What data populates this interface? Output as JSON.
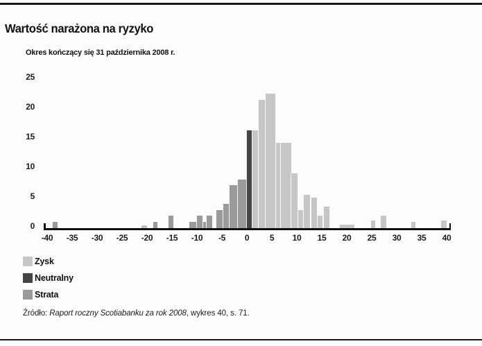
{
  "page": {
    "title": "Wartość narażona na ryzyko",
    "subtitle": "Okres kończący się 31 października 2008 r.",
    "source": {
      "prefix": "Źródło: ",
      "work": "Raport roczny Scotiabanku za rok 2008",
      "suffix": ", wykres 40, s. 71."
    }
  },
  "legend": {
    "items": [
      {
        "label": "Zysk",
        "color": "#c6c6c6"
      },
      {
        "label": "Neutralny",
        "color": "#454545"
      },
      {
        "label": "Strata",
        "color": "#9a9a9a"
      }
    ]
  },
  "chart_data": {
    "type": "bar",
    "title": "Wartość narażona na ryzyko",
    "subtitle": "Okres kończący się 31 października 2008 r.",
    "xlabel": "",
    "ylabel": "",
    "xlim": [
      -42,
      42
    ],
    "ylim": [
      0,
      25
    ],
    "grid": false,
    "legend_position": "bottom-left",
    "x_ticks": [
      -40,
      -35,
      -30,
      -25,
      -20,
      -15,
      -10,
      -5,
      0,
      5,
      10,
      15,
      20,
      25,
      30,
      35,
      40
    ],
    "y_ticks": [
      0,
      5,
      10,
      15,
      20,
      25
    ],
    "colors": {
      "zysk": "#c6c6c6",
      "neutralny": "#454545",
      "strata": "#9a9a9a",
      "axis": "#0f0f0f"
    },
    "series_labels": {
      "zysk": "Zysk",
      "neutralny": "Neutralny",
      "strata": "Strata"
    },
    "bars": [
      {
        "x": -38.5,
        "w": 1.1,
        "h": 1,
        "series": "strata"
      },
      {
        "x": -20.6,
        "w": 1.2,
        "h": 0.5,
        "series": "strata",
        "color": "#c2c2c2"
      },
      {
        "x": -18.4,
        "w": 1.1,
        "h": 1,
        "series": "strata"
      },
      {
        "x": -15.3,
        "w": 1.2,
        "h": 2,
        "series": "strata"
      },
      {
        "x": -10.9,
        "w": 1.5,
        "h": 1,
        "series": "strata"
      },
      {
        "x": -9.5,
        "w": 1.3,
        "h": 2,
        "series": "strata"
      },
      {
        "x": -8.5,
        "w": 0.9,
        "h": 1,
        "series": "strata"
      },
      {
        "x": -7.6,
        "w": 1.3,
        "h": 2,
        "series": "strata"
      },
      {
        "x": -5.5,
        "w": 1.4,
        "h": 3,
        "series": "strata"
      },
      {
        "x": -4.2,
        "w": 1.3,
        "h": 4,
        "series": "strata"
      },
      {
        "x": -2.8,
        "w": 1.6,
        "h": 7,
        "series": "strata"
      },
      {
        "x": -1.0,
        "w": 2.0,
        "h": 8,
        "series": "strata"
      },
      {
        "x": 0.45,
        "w": 1.1,
        "h": 16,
        "series": "neutralny"
      },
      {
        "x": 1.6,
        "w": 1.2,
        "h": 16,
        "series": "zysk"
      },
      {
        "x": 2.9,
        "w": 1.4,
        "h": 21,
        "series": "zysk"
      },
      {
        "x": 4.6,
        "w": 2.1,
        "h": 22,
        "series": "zysk"
      },
      {
        "x": 6.2,
        "w": 1.0,
        "h": 14,
        "series": "zysk"
      },
      {
        "x": 7.8,
        "w": 2.2,
        "h": 14,
        "series": "zysk"
      },
      {
        "x": 9.4,
        "w": 1.4,
        "h": 9,
        "series": "zysk"
      },
      {
        "x": 10.7,
        "w": 1.2,
        "h": 3,
        "series": "zysk"
      },
      {
        "x": 12.0,
        "w": 1.4,
        "h": 5.5,
        "series": "zysk"
      },
      {
        "x": 13.4,
        "w": 1.3,
        "h": 5,
        "series": "zysk"
      },
      {
        "x": 14.6,
        "w": 1.2,
        "h": 2,
        "series": "zysk"
      },
      {
        "x": 15.9,
        "w": 1.3,
        "h": 3.5,
        "series": "zysk"
      },
      {
        "x": 20.0,
        "w": 3.0,
        "h": 0.6,
        "series": "zysk"
      },
      {
        "x": 25.2,
        "w": 1.0,
        "h": 1.2,
        "series": "zysk"
      },
      {
        "x": 27.3,
        "w": 1.2,
        "h": 2,
        "series": "zysk"
      },
      {
        "x": 33.3,
        "w": 1.0,
        "h": 1,
        "series": "zysk"
      },
      {
        "x": 39.4,
        "w": 1.2,
        "h": 1.2,
        "series": "zysk"
      }
    ]
  }
}
